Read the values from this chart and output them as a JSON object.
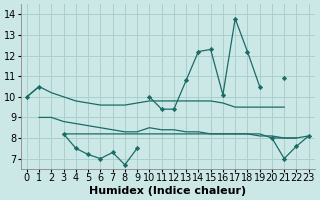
{
  "xlabel": "Humidex (Indice chaleur)",
  "bg_color": "#cce8e6",
  "grid_color": "#aacfcc",
  "line_color": "#1a6b66",
  "ylim": [
    6.5,
    14.5
  ],
  "xlim": [
    -0.5,
    23.5
  ],
  "yticks": [
    7,
    8,
    9,
    10,
    11,
    12,
    13,
    14
  ],
  "xtick_labels": [
    "0",
    "1",
    "2",
    "3",
    "4",
    "5",
    "6",
    "7",
    "8",
    "9",
    "10",
    "11",
    "12",
    "13",
    "14",
    "15",
    "16",
    "17",
    "18",
    "19",
    "20",
    "21",
    "22",
    "23"
  ],
  "line_upper_marked": [
    10.0,
    10.5,
    null,
    null,
    null,
    null,
    null,
    null,
    null,
    null,
    10.0,
    9.4,
    9.4,
    10.8,
    12.2,
    12.3,
    10.1,
    13.8,
    12.2,
    10.5,
    null,
    10.9,
    null,
    null
  ],
  "line_upper_smooth": [
    10.0,
    10.5,
    10.2,
    10.0,
    9.8,
    9.7,
    9.6,
    9.6,
    9.6,
    9.7,
    9.8,
    9.8,
    9.8,
    9.8,
    9.8,
    9.8,
    9.7,
    9.5,
    9.5,
    9.5,
    9.5,
    9.5,
    null,
    null
  ],
  "line_lower_smooth": [
    null,
    9.0,
    9.0,
    8.8,
    8.7,
    8.6,
    8.5,
    8.4,
    8.3,
    8.3,
    8.5,
    8.4,
    8.4,
    8.3,
    8.3,
    8.2,
    8.2,
    8.2,
    8.2,
    8.1,
    8.1,
    8.0,
    8.0,
    null
  ],
  "line_lower_marked": [
    null,
    null,
    null,
    8.2,
    7.5,
    7.2,
    7.0,
    7.3,
    6.7,
    7.5,
    null,
    null,
    null,
    null,
    null,
    null,
    null,
    null,
    null,
    null,
    8.0,
    7.0,
    7.6,
    8.1
  ],
  "line_flat": [
    null,
    null,
    null,
    8.2,
    8.2,
    8.2,
    8.2,
    8.2,
    8.2,
    8.2,
    8.2,
    8.2,
    8.2,
    8.2,
    8.2,
    8.2,
    8.2,
    8.2,
    8.2,
    8.2,
    8.0,
    8.0,
    8.0,
    8.1
  ],
  "font_size": 7.0
}
